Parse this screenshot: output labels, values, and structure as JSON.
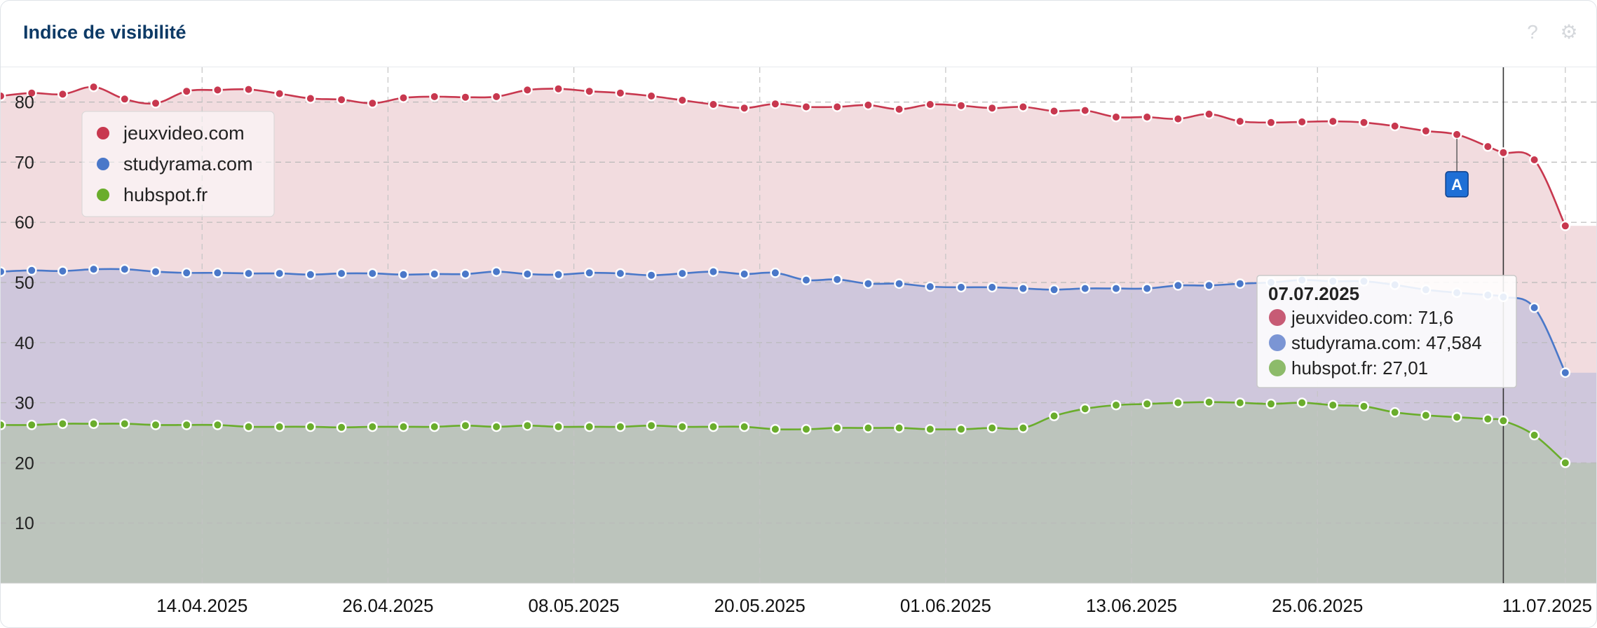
{
  "header": {
    "title": "Indice de visibilité",
    "help_icon": "question-mark-icon",
    "settings_icon": "gear-icon"
  },
  "chart_data": {
    "type": "area",
    "title": "Indice de visibilité",
    "xlabel": "",
    "ylabel": "",
    "ylim": [
      0,
      83
    ],
    "y_ticks": [
      10,
      20,
      30,
      40,
      50,
      60,
      70,
      80
    ],
    "x_range": [
      "2025-04-01",
      "2025-07-13"
    ],
    "x_tick_labels": [
      {
        "date": "2025-04-14",
        "label": "14.04.2025"
      },
      {
        "date": "2025-04-26",
        "label": "26.04.2025"
      },
      {
        "date": "2025-05-08",
        "label": "08.05.2025"
      },
      {
        "date": "2025-05-20",
        "label": "20.05.2025"
      },
      {
        "date": "2025-06-01",
        "label": "01.06.2025"
      },
      {
        "date": "2025-06-13",
        "label": "13.06.2025"
      },
      {
        "date": "2025-06-25",
        "label": "25.06.2025"
      },
      {
        "date": "2025-07-11",
        "label": "11.07.2025"
      }
    ],
    "grid": true,
    "legend_position": "top-left",
    "series": [
      {
        "name": "jeuxvideo.com",
        "color": "#c8384f",
        "fill": "#f2dcdf",
        "points": [
          [
            "2025-04-01",
            81.0
          ],
          [
            "2025-04-03",
            81.5
          ],
          [
            "2025-04-05",
            81.3
          ],
          [
            "2025-04-07",
            82.5
          ],
          [
            "2025-04-09",
            80.5
          ],
          [
            "2025-04-11",
            79.8
          ],
          [
            "2025-04-13",
            81.8
          ],
          [
            "2025-04-15",
            82.0
          ],
          [
            "2025-04-17",
            82.1
          ],
          [
            "2025-04-19",
            81.4
          ],
          [
            "2025-04-21",
            80.6
          ],
          [
            "2025-04-23",
            80.4
          ],
          [
            "2025-04-25",
            79.8
          ],
          [
            "2025-04-27",
            80.7
          ],
          [
            "2025-04-29",
            80.9
          ],
          [
            "2025-05-01",
            80.8
          ],
          [
            "2025-05-03",
            80.9
          ],
          [
            "2025-05-05",
            82.0
          ],
          [
            "2025-05-07",
            82.2
          ],
          [
            "2025-05-09",
            81.8
          ],
          [
            "2025-05-11",
            81.5
          ],
          [
            "2025-05-13",
            81.0
          ],
          [
            "2025-05-15",
            80.3
          ],
          [
            "2025-05-17",
            79.6
          ],
          [
            "2025-05-19",
            79.0
          ],
          [
            "2025-05-21",
            79.7
          ],
          [
            "2025-05-23",
            79.2
          ],
          [
            "2025-05-25",
            79.2
          ],
          [
            "2025-05-27",
            79.5
          ],
          [
            "2025-05-29",
            78.8
          ],
          [
            "2025-05-31",
            79.6
          ],
          [
            "2025-06-02",
            79.4
          ],
          [
            "2025-06-04",
            79.0
          ],
          [
            "2025-06-06",
            79.2
          ],
          [
            "2025-06-08",
            78.5
          ],
          [
            "2025-06-10",
            78.6
          ],
          [
            "2025-06-12",
            77.5
          ],
          [
            "2025-06-14",
            77.5
          ],
          [
            "2025-06-16",
            77.2
          ],
          [
            "2025-06-18",
            78.0
          ],
          [
            "2025-06-20",
            76.8
          ],
          [
            "2025-06-22",
            76.6
          ],
          [
            "2025-06-24",
            76.7
          ],
          [
            "2025-06-26",
            76.8
          ],
          [
            "2025-06-28",
            76.6
          ],
          [
            "2025-06-30",
            76.0
          ],
          [
            "2025-07-02",
            75.2
          ],
          [
            "2025-07-04",
            74.6
          ],
          [
            "2025-07-06",
            72.6
          ],
          [
            "2025-07-07",
            71.6
          ],
          [
            "2025-07-09",
            70.4
          ],
          [
            "2025-07-11",
            59.4
          ]
        ]
      },
      {
        "name": "studyrama.com",
        "color": "#4a78c9",
        "fill": "#cfc7dc",
        "points": [
          [
            "2025-04-01",
            51.8
          ],
          [
            "2025-04-03",
            52.0
          ],
          [
            "2025-04-05",
            51.9
          ],
          [
            "2025-04-07",
            52.2
          ],
          [
            "2025-04-09",
            52.2
          ],
          [
            "2025-04-11",
            51.8
          ],
          [
            "2025-04-13",
            51.6
          ],
          [
            "2025-04-15",
            51.6
          ],
          [
            "2025-04-17",
            51.5
          ],
          [
            "2025-04-19",
            51.5
          ],
          [
            "2025-04-21",
            51.3
          ],
          [
            "2025-04-23",
            51.5
          ],
          [
            "2025-04-25",
            51.5
          ],
          [
            "2025-04-27",
            51.3
          ],
          [
            "2025-04-29",
            51.4
          ],
          [
            "2025-05-01",
            51.4
          ],
          [
            "2025-05-03",
            51.8
          ],
          [
            "2025-05-05",
            51.4
          ],
          [
            "2025-05-07",
            51.3
          ],
          [
            "2025-05-09",
            51.6
          ],
          [
            "2025-05-11",
            51.5
          ],
          [
            "2025-05-13",
            51.2
          ],
          [
            "2025-05-15",
            51.5
          ],
          [
            "2025-05-17",
            51.8
          ],
          [
            "2025-05-19",
            51.4
          ],
          [
            "2025-05-21",
            51.6
          ],
          [
            "2025-05-23",
            50.4
          ],
          [
            "2025-05-25",
            50.5
          ],
          [
            "2025-05-27",
            49.8
          ],
          [
            "2025-05-29",
            49.8
          ],
          [
            "2025-05-31",
            49.3
          ],
          [
            "2025-06-02",
            49.2
          ],
          [
            "2025-06-04",
            49.2
          ],
          [
            "2025-06-06",
            49.0
          ],
          [
            "2025-06-08",
            48.8
          ],
          [
            "2025-06-10",
            49.0
          ],
          [
            "2025-06-12",
            49.0
          ],
          [
            "2025-06-14",
            49.0
          ],
          [
            "2025-06-16",
            49.5
          ],
          [
            "2025-06-18",
            49.5
          ],
          [
            "2025-06-20",
            49.8
          ],
          [
            "2025-06-22",
            50.0
          ],
          [
            "2025-06-24",
            50.4
          ],
          [
            "2025-06-26",
            50.2
          ],
          [
            "2025-06-28",
            50.2
          ],
          [
            "2025-06-30",
            49.6
          ],
          [
            "2025-07-02",
            48.8
          ],
          [
            "2025-07-04",
            48.3
          ],
          [
            "2025-07-06",
            47.9
          ],
          [
            "2025-07-07",
            47.584
          ],
          [
            "2025-07-09",
            45.8
          ],
          [
            "2025-07-11",
            35.0
          ]
        ]
      },
      {
        "name": "hubspot.fr",
        "color": "#6aad2c",
        "fill": "#bcc4bc",
        "points": [
          [
            "2025-04-01",
            26.3
          ],
          [
            "2025-04-03",
            26.3
          ],
          [
            "2025-04-05",
            26.5
          ],
          [
            "2025-04-07",
            26.5
          ],
          [
            "2025-04-09",
            26.5
          ],
          [
            "2025-04-11",
            26.3
          ],
          [
            "2025-04-13",
            26.3
          ],
          [
            "2025-04-15",
            26.3
          ],
          [
            "2025-04-17",
            26.0
          ],
          [
            "2025-04-19",
            26.0
          ],
          [
            "2025-04-21",
            26.0
          ],
          [
            "2025-04-23",
            25.9
          ],
          [
            "2025-04-25",
            26.0
          ],
          [
            "2025-04-27",
            26.0
          ],
          [
            "2025-04-29",
            26.0
          ],
          [
            "2025-05-01",
            26.2
          ],
          [
            "2025-05-03",
            26.0
          ],
          [
            "2025-05-05",
            26.2
          ],
          [
            "2025-05-07",
            26.0
          ],
          [
            "2025-05-09",
            26.0
          ],
          [
            "2025-05-11",
            26.0
          ],
          [
            "2025-05-13",
            26.2
          ],
          [
            "2025-05-15",
            26.0
          ],
          [
            "2025-05-17",
            26.0
          ],
          [
            "2025-05-19",
            26.0
          ],
          [
            "2025-05-21",
            25.6
          ],
          [
            "2025-05-23",
            25.6
          ],
          [
            "2025-05-25",
            25.8
          ],
          [
            "2025-05-27",
            25.8
          ],
          [
            "2025-05-29",
            25.8
          ],
          [
            "2025-05-31",
            25.6
          ],
          [
            "2025-06-02",
            25.6
          ],
          [
            "2025-06-04",
            25.8
          ],
          [
            "2025-06-06",
            25.8
          ],
          [
            "2025-06-08",
            27.8
          ],
          [
            "2025-06-10",
            29.0
          ],
          [
            "2025-06-12",
            29.6
          ],
          [
            "2025-06-14",
            29.8
          ],
          [
            "2025-06-16",
            30.0
          ],
          [
            "2025-06-18",
            30.1
          ],
          [
            "2025-06-20",
            30.0
          ],
          [
            "2025-06-22",
            29.8
          ],
          [
            "2025-06-24",
            30.0
          ],
          [
            "2025-06-26",
            29.6
          ],
          [
            "2025-06-28",
            29.4
          ],
          [
            "2025-06-30",
            28.4
          ],
          [
            "2025-07-02",
            27.9
          ],
          [
            "2025-07-04",
            27.6
          ],
          [
            "2025-07-06",
            27.3
          ],
          [
            "2025-07-07",
            27.01
          ],
          [
            "2025-07-09",
            24.6
          ],
          [
            "2025-07-11",
            20.0
          ]
        ]
      }
    ],
    "annotation": {
      "label": "A",
      "date": "2025-07-04",
      "series": "jeuxvideo.com"
    },
    "crosshair_date": "2025-07-07",
    "tooltip": {
      "date": "07.07.2025",
      "rows": [
        {
          "label": "jeuxvideo.com: 71,6",
          "color": "#c75b75"
        },
        {
          "label": "studyrama.com: 47,584",
          "color": "#7b95d4"
        },
        {
          "label": "hubspot.fr: 27,01",
          "color": "#8dbb6a"
        }
      ]
    }
  }
}
